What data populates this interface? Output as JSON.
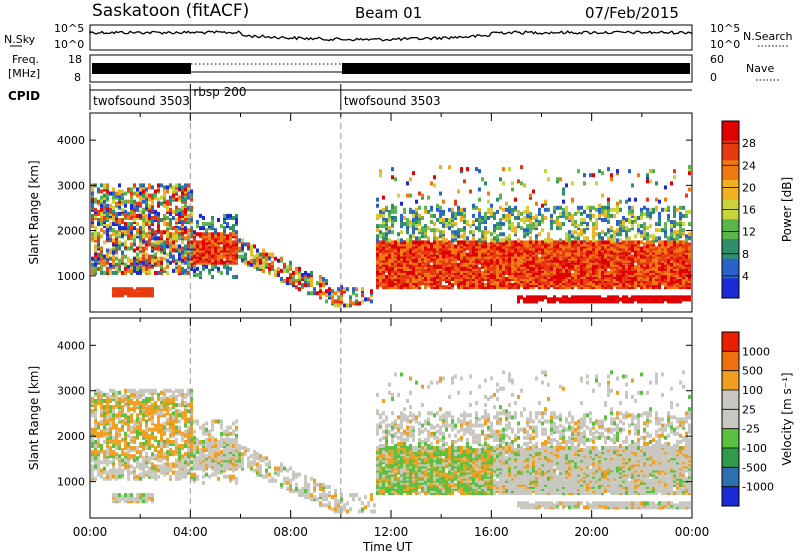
{
  "header": {
    "station": "Saskatoon (fitACF)",
    "beam": "Beam 01",
    "date": "07/Feb/2015"
  },
  "noise_panel": {
    "left_label": "N.Sky",
    "left_ticks": [
      "10^5",
      "10^0"
    ],
    "right_ticks": [
      "10^5",
      "10^0"
    ],
    "right_label": "N.Search",
    "right_label_style": "dotted"
  },
  "freq_panel": {
    "left_label_1": "Freq.",
    "left_label_2": "[MHz]",
    "left_ticks": [
      "18",
      "8"
    ],
    "right_ticks": [
      "60",
      "0"
    ],
    "right_label": "Nave",
    "right_label_style": "dotted"
  },
  "cpid": {
    "label": "CPID",
    "segments": [
      {
        "start": 0,
        "end": 4,
        "name": "twofsound 3503"
      },
      {
        "start": 4,
        "end": 10,
        "name": "rbsp 200"
      },
      {
        "start": 10,
        "end": 24,
        "name": "twofsound 3503"
      }
    ]
  },
  "chart_data": [
    {
      "type": "heatmap",
      "ylabel": "Slant Range [km]",
      "ylim": [
        200,
        4600
      ],
      "yticks": [
        1000,
        2000,
        3000,
        4000
      ],
      "xlim": [
        0,
        24
      ],
      "colorbar": {
        "label": "Power [dB]",
        "ticks": [
          "28",
          "24",
          "20",
          "16",
          "12",
          "8",
          "4"
        ],
        "colors": [
          "#1a2bd6",
          "#2b62c9",
          "#2e8f6a",
          "#5ab54b",
          "#c8d43a",
          "#f0b020",
          "#f07a10",
          "#e83a10",
          "#e00000"
        ]
      },
      "echo_regions": [
        {
          "x": [
            0,
            4
          ],
          "range_km": [
            1000,
            3000
          ],
          "level": "strong",
          "note": "mixed returns"
        },
        {
          "x": [
            4,
            5.5
          ],
          "range_km": [
            1200,
            1800
          ],
          "level": "very-strong"
        },
        {
          "x": [
            11.5,
            24
          ],
          "range_km": [
            600,
            1800
          ],
          "level": "very-strong"
        }
      ]
    },
    {
      "type": "heatmap",
      "ylabel": "Slant Range [km]",
      "ylim": [
        200,
        4600
      ],
      "yticks": [
        1000,
        2000,
        3000,
        4000
      ],
      "xlim": [
        0,
        24
      ],
      "xticks": [
        "00:00",
        "04:00",
        "08:00",
        "12:00",
        "16:00",
        "20:00",
        "00:00"
      ],
      "xlabel": "Time UT",
      "colorbar": {
        "label": "Velocity [m s⁻¹]",
        "ticks": [
          "1000",
          "500",
          "100",
          "25",
          "-25",
          "-100",
          "-500",
          "-1000"
        ],
        "colors": [
          "#1a2bd6",
          "#2e6fb0",
          "#2e9a4a",
          "#5ac040",
          "#c8c8c0",
          "#c8c8c0",
          "#f0a020",
          "#f07010",
          "#e82000"
        ]
      }
    }
  ],
  "vertical_markers_hours": [
    4,
    10
  ]
}
